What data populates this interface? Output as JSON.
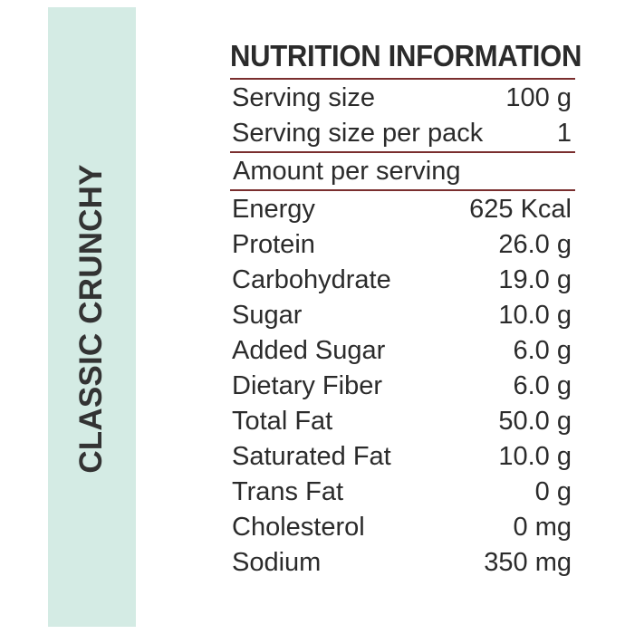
{
  "side_label": "CLASSIC CRUNCHY",
  "title": "NUTRITION INFORMATION",
  "serving": [
    {
      "label": "Serving size",
      "value": "100 g"
    },
    {
      "label": "Serving size per pack",
      "value": "1"
    }
  ],
  "amount_per_serving": "Amount per serving",
  "nutrients": [
    {
      "label": "Energy",
      "value": "625 Kcal"
    },
    {
      "label": "Protein",
      "value": "26.0 g"
    },
    {
      "label": "Carbohydrate",
      "value": "19.0 g"
    },
    {
      "label": "Sugar",
      "value": "10.0 g"
    },
    {
      "label": "Added Sugar",
      "value": "6.0 g"
    },
    {
      "label": "Dietary Fiber",
      "value": "6.0 g"
    },
    {
      "label": "Total Fat",
      "value": "50.0 g"
    },
    {
      "label": "Saturated Fat",
      "value": "10.0 g"
    },
    {
      "label": "Trans Fat",
      "value": "0 g"
    },
    {
      "label": "Cholesterol",
      "value": "0 mg"
    },
    {
      "label": "Sodium",
      "value": "350 mg"
    }
  ],
  "colors": {
    "band": "#d4ebe4",
    "rule": "#7a2e2e",
    "text": "#2b2b2b"
  }
}
